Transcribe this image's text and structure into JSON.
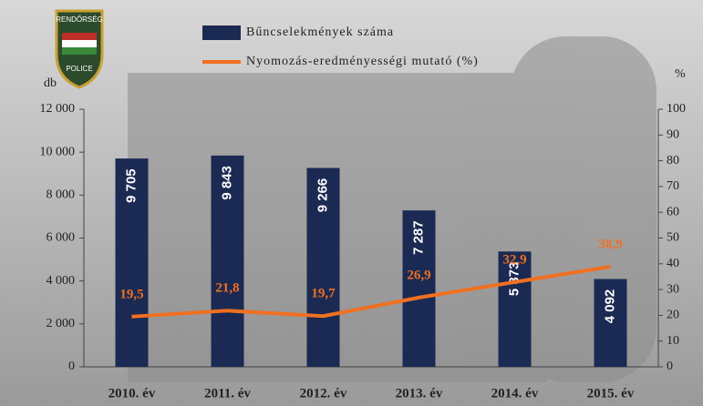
{
  "chart_data": {
    "type": "bar",
    "categories": [
      "2010. év",
      "2011. év",
      "2012. év",
      "2013. év",
      "2014. év",
      "2015. év"
    ],
    "series": [
      {
        "name": "Bűncselekmények száma",
        "type": "bar",
        "color": "#1b2a52",
        "values": [
          9705,
          9843,
          9266,
          7287,
          5373,
          4092
        ],
        "value_labels": [
          "9 705",
          "9 843",
          "9 266",
          "7 287",
          "5 373",
          "4 092"
        ]
      },
      {
        "name": "Nyomozás-eredményességi mutató (%)",
        "type": "line",
        "axis": "y2",
        "color": "#f07020",
        "values": [
          19.5,
          21.8,
          19.7,
          26.9,
          32.9,
          38.9
        ],
        "value_labels": [
          "19,5",
          "21,8",
          "19,7",
          "26,9",
          "32,9",
          "38,9"
        ]
      }
    ],
    "ylabel": "db",
    "y2label": "%",
    "ylim": [
      0,
      12000
    ],
    "yticks": [
      0,
      {
        "value": 2000,
        "label": "2 000"
      },
      {
        "value": 4000,
        "label": "4 000"
      },
      {
        "value": 6000,
        "label": "6 000"
      },
      {
        "value": 8000,
        "label": "8 000"
      },
      {
        "value": 10000,
        "label": "10 000"
      },
      {
        "value": 12000,
        "label": "12 000"
      }
    ],
    "y2lim": [
      0,
      100
    ],
    "y2ticks": [
      0,
      10,
      20,
      30,
      40,
      50,
      60,
      70,
      80,
      90,
      100
    ],
    "logo_text": {
      "top": "RENDŐRSÉG",
      "bottom": "POLICE"
    }
  }
}
